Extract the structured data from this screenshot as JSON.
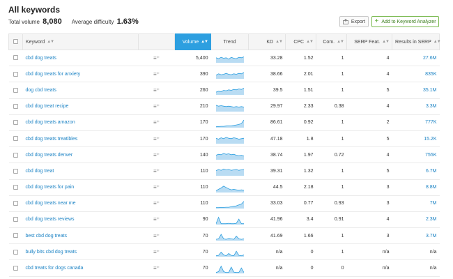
{
  "header": {
    "title": "All keywords",
    "total_volume_label": "Total volume",
    "total_volume_value": "8,080",
    "avg_difficulty_label": "Average difficulty",
    "avg_difficulty_value": "1.63%"
  },
  "buttons": {
    "export": "Export",
    "add_to_analyzer": "Add to Keyword Analyzer"
  },
  "columns": {
    "keyword": "Keyword",
    "volume": "Volume",
    "trend": "Trend",
    "kd": "KD",
    "cpc": "CPC",
    "com": "Com.",
    "serp_feat": "SERP Feat.",
    "results": "Results in SERP"
  },
  "colors": {
    "accent": "#2d9fe0",
    "link": "#1a82c4",
    "add_button": "#5ca934"
  },
  "rows": [
    {
      "keyword": "cbd dog treats",
      "volume": "5,400",
      "kd": "33.28",
      "cpc": "1.52",
      "com": "1",
      "serp": "4",
      "results": "27.6M",
      "trend": [
        0.55,
        0.45,
        0.6,
        0.5,
        0.55,
        0.4,
        0.6,
        0.5,
        0.45,
        0.6,
        0.55,
        0.65
      ]
    },
    {
      "keyword": "cbd dog treats for anxiety",
      "volume": "390",
      "kd": "38.66",
      "cpc": "2.01",
      "com": "1",
      "serp": "4",
      "results": "835K",
      "trend": [
        0.4,
        0.55,
        0.45,
        0.5,
        0.6,
        0.5,
        0.45,
        0.55,
        0.5,
        0.6,
        0.55,
        0.7
      ]
    },
    {
      "keyword": "dog cbd treats",
      "volume": "260",
      "kd": "39.5",
      "cpc": "1.51",
      "com": "1",
      "serp": "5",
      "results": "35.1M",
      "trend": [
        0.3,
        0.4,
        0.35,
        0.5,
        0.45,
        0.55,
        0.5,
        0.6,
        0.55,
        0.65,
        0.6,
        0.75
      ]
    },
    {
      "keyword": "cbd dog treat recipe",
      "volume": "210",
      "kd": "29.97",
      "cpc": "2.33",
      "com": "0.38",
      "serp": "4",
      "results": "3.3M",
      "trend": [
        0.7,
        0.6,
        0.65,
        0.6,
        0.55,
        0.6,
        0.55,
        0.5,
        0.55,
        0.5,
        0.55,
        0.5
      ]
    },
    {
      "keyword": "cbd dog treats amazon",
      "volume": "170",
      "kd": "86.61",
      "cpc": "0.92",
      "com": "1",
      "serp": "2",
      "results": "777K",
      "trend": [
        0.1,
        0.12,
        0.15,
        0.15,
        0.18,
        0.2,
        0.2,
        0.25,
        0.3,
        0.35,
        0.45,
        0.85
      ]
    },
    {
      "keyword": "cbd dog treats treatibles",
      "volume": "170",
      "kd": "47.18",
      "cpc": "1.8",
      "com": "1",
      "serp": "5",
      "results": "15.2K",
      "trend": [
        0.6,
        0.5,
        0.65,
        0.55,
        0.7,
        0.6,
        0.55,
        0.65,
        0.6,
        0.5,
        0.55,
        0.6
      ]
    },
    {
      "keyword": "cbd dog treats denver",
      "volume": "140",
      "kd": "38.74",
      "cpc": "1.97",
      "com": "0.72",
      "serp": "4",
      "results": "755K",
      "trend": [
        0.5,
        0.6,
        0.55,
        0.7,
        0.6,
        0.65,
        0.55,
        0.6,
        0.5,
        0.45,
        0.5,
        0.4
      ]
    },
    {
      "keyword": "cbd dog treat",
      "volume": "110",
      "kd": "39.31",
      "cpc": "1.32",
      "com": "1",
      "serp": "5",
      "results": "6.7M",
      "trend": [
        0.55,
        0.7,
        0.6,
        0.75,
        0.65,
        0.7,
        0.6,
        0.65,
        0.7,
        0.6,
        0.65,
        0.7
      ]
    },
    {
      "keyword": "cbd dog treats for pain",
      "volume": "110",
      "kd": "44.5",
      "cpc": "2.18",
      "com": "1",
      "serp": "3",
      "results": "8.8M",
      "trend": [
        0.2,
        0.35,
        0.5,
        0.7,
        0.55,
        0.4,
        0.3,
        0.35,
        0.3,
        0.25,
        0.3,
        0.25
      ]
    },
    {
      "keyword": "cbd dog treats near me",
      "volume": "110",
      "kd": "33.03",
      "cpc": "0.77",
      "com": "0.93",
      "serp": "3",
      "results": "7M",
      "trend": [
        0.1,
        0.1,
        0.12,
        0.12,
        0.15,
        0.15,
        0.2,
        0.25,
        0.3,
        0.4,
        0.5,
        0.8
      ]
    },
    {
      "keyword": "cbd dog treats reviews",
      "volume": "90",
      "kd": "41.96",
      "cpc": "3.4",
      "com": "0.91",
      "serp": "4",
      "results": "2.3M",
      "trend": [
        0.1,
        0.8,
        0.1,
        0.1,
        0.1,
        0.15,
        0.1,
        0.1,
        0.15,
        0.6,
        0.1,
        0.1
      ]
    },
    {
      "keyword": "best cbd dog treats",
      "volume": "70",
      "kd": "41.69",
      "cpc": "1.66",
      "com": "1",
      "serp": "3",
      "results": "3.7M",
      "trend": [
        0.15,
        0.2,
        0.7,
        0.2,
        0.15,
        0.25,
        0.2,
        0.15,
        0.5,
        0.2,
        0.15,
        0.2
      ]
    },
    {
      "keyword": "bully bits cbd dog treats",
      "volume": "70",
      "kd": "n/a",
      "cpc": "0",
      "com": "1",
      "serp": "n/a",
      "results": "n/a",
      "trend": [
        0.1,
        0.15,
        0.5,
        0.2,
        0.1,
        0.35,
        0.15,
        0.1,
        0.6,
        0.15,
        0.1,
        0.2
      ]
    },
    {
      "keyword": "cbd treats for dogs canada",
      "volume": "70",
      "kd": "n/a",
      "cpc": "0",
      "com": "0",
      "serp": "n/a",
      "results": "n/a",
      "trend": [
        0.1,
        0.2,
        0.8,
        0.2,
        0.1,
        0.1,
        0.7,
        0.15,
        0.1,
        0.1,
        0.6,
        0.1
      ]
    }
  ]
}
